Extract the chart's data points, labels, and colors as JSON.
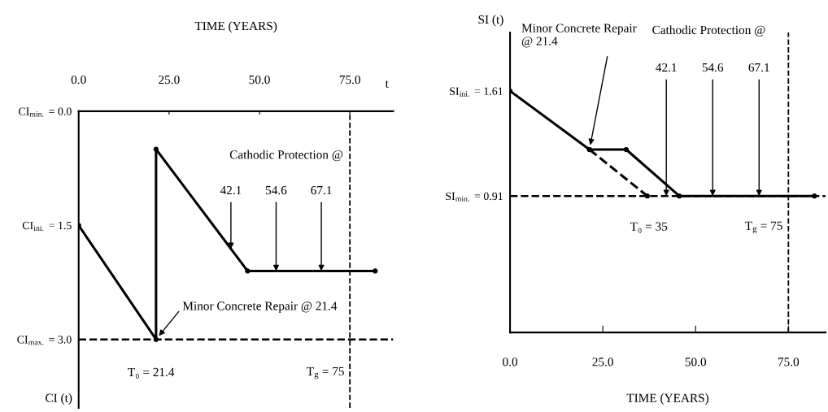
{
  "chart_data": [
    {
      "type": "line",
      "xlabel": "TIME (YEARS)",
      "ylabel": "CI (t)",
      "xlim": [
        0,
        87
      ],
      "ylim": [
        3.9,
        0.0
      ],
      "xticks": [
        {
          "value": 0,
          "label": "0.0"
        },
        {
          "value": 25,
          "label": "25.0"
        },
        {
          "value": 50,
          "label": "50.0"
        },
        {
          "value": 75,
          "label": "75.0"
        }
      ],
      "yticks": [
        {
          "value": 0.0,
          "label": "CI$_{min.}$ = 0.0"
        },
        {
          "value": 1.5,
          "label": "CI$_{ini.}$ = 1.5"
        },
        {
          "value": 3.0,
          "label": "CI$_{max.}$ = 3.0"
        }
      ],
      "series": [
        {
          "color": "#000000",
          "x": [
            0,
            21.4,
            21.4,
            46.7,
            82
          ],
          "values": [
            1.5,
            3.0,
            0.5,
            2.1,
            2.1
          ]
        }
      ],
      "marker": "circle",
      "line_style": "solid",
      "grid": false,
      "legend": false,
      "ref_lines": [
        {
          "axis": "y",
          "value": 3.0,
          "line_style": "dashed",
          "color": "#000000"
        },
        {
          "axis": "x",
          "value": 75,
          "label": "T$_{g}$ = 75",
          "line_style": "dashed",
          "color": "#000000"
        }
      ],
      "annotations": [
        "t",
        "Cathodic Protection @",
        "T₀ = 21.4",
        {
          "text": "Minor Concrete Repair @ 21.4",
          "x": 21.4,
          "y": 3.0
        },
        {
          "text": "42.1",
          "x": 42.1,
          "y": 1.81
        },
        {
          "text": "54.6",
          "x": 54.6,
          "y": 2.1
        },
        {
          "text": "67.1",
          "x": 67.1,
          "y": 2.1
        }
      ]
    },
    {
      "type": "line",
      "xlabel": "TIME (YEARS)",
      "ylabel": "SI (t)",
      "xlim": [
        0,
        85
      ],
      "ylim": [
        0,
        2.0
      ],
      "xticks": [
        {
          "value": 0,
          "label": "0.0"
        },
        {
          "value": 25,
          "label": "25.0"
        },
        {
          "value": 50,
          "label": "50.0"
        },
        {
          "value": 75,
          "label": "75.0"
        }
      ],
      "yticks": [
        {
          "value": 0.91,
          "label": "SI$_{min.}$ = 0.91"
        },
        {
          "value": 1.61,
          "label": "SI$_{ini.}$ = 1.61"
        }
      ],
      "series": [
        {
          "color": "#000000",
          "x": [
            0,
            21.4,
            31.3,
            45.6,
            82
          ],
          "values": [
            1.61,
            1.22,
            1.22,
            0.91,
            0.91
          ]
        },
        {
          "color": "#000000",
          "line_style": "dashed",
          "x": [
            21.4,
            37
          ],
          "values": [
            1.22,
            0.91
          ]
        }
      ],
      "marker": "circle",
      "line_style": "solid",
      "grid": false,
      "legend": false,
      "ref_lines": [
        {
          "axis": "y",
          "value": 0.91,
          "line_style": "dashed",
          "color": "#000000"
        },
        {
          "axis": "x",
          "value": 75,
          "label": "T$_{g}$ = 75",
          "line_style": "dashed",
          "color": "#000000"
        }
      ],
      "annotations": [
        "Cathodic Protection @",
        "T₀ = 35",
        {
          "text": "Minor Concrete Repair\n@ 21.4",
          "x": 21.4,
          "y": 1.22
        },
        {
          "text": "42.1",
          "x": 42.1,
          "y": 0.91
        },
        {
          "text": "54.6",
          "x": 54.6,
          "y": 0.91
        },
        {
          "text": "67.1",
          "x": 67.1,
          "y": 0.91
        }
      ]
    }
  ]
}
